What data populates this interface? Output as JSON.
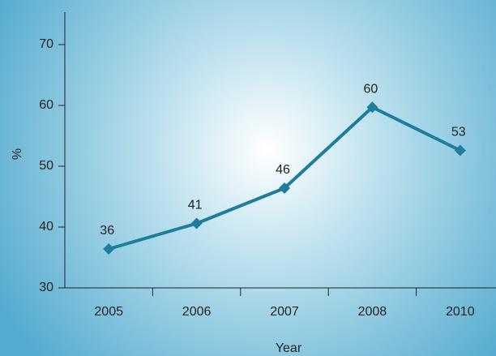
{
  "chart_data": {
    "type": "line",
    "x_label": "Year",
    "y_label": "%",
    "categories": [
      "2005",
      "2006",
      "2007",
      "2008",
      "2010"
    ],
    "values": [
      36.4,
      40.6,
      46.4,
      59.7,
      52.6
    ],
    "value_labels": [
      "36",
      "41",
      "46",
      "60",
      "53"
    ],
    "color": "#1c7d9c",
    "ylim": [
      30,
      72
    ],
    "yticks": [
      30,
      40,
      50,
      60,
      70
    ]
  }
}
